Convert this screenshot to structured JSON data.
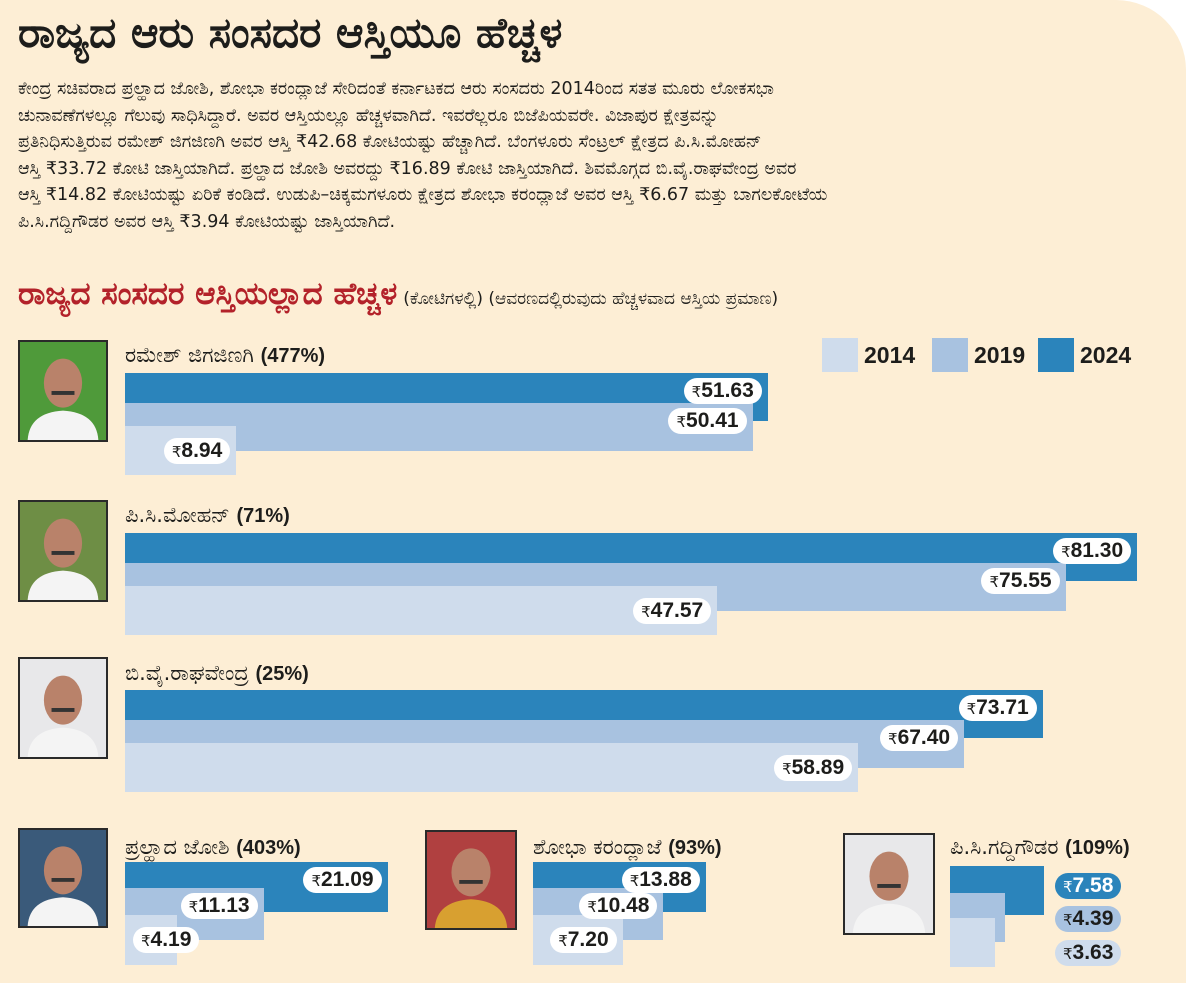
{
  "title": "ರಾಜ್ಯದ ಆರು ಸಂಸದರ ಆಸ್ತಿಯೂ ಹೆಚ್ಚಳ",
  "paragraph_lines": [
    "ಕೇಂದ್ರ ಸಚಿವರಾದ ಪ್ರಲ್ಹಾದ ಜೋಶಿ, ಶೋಭಾ ಕರಂದ್ಲಾಜೆ ಸೇರಿದಂತೆ ಕರ್ನಾಟಕದ ಆರು ಸಂಸದರು 2014ರಿಂದ ಸತತ ಮೂರು ಲೋಕಸಭಾ",
    "ಚುನಾವಣೆಗಳಲ್ಲೂ ಗೆಲುವು ಸಾಧಿಸಿದ್ದಾರೆ. ಅವರ ಆಸ್ತಿಯಲ್ಲೂ ಹೆಚ್ಚಳವಾಗಿದೆ. ಇವರೆಲ್ಲರೂ ಬಿಜೆಪಿಯವರೇ. ವಿಜಾಪುರ ಕ್ಷೇತ್ರವನ್ನು",
    "ಪ್ರತಿನಿಧಿಸುತ್ತಿರುವ ರಮೇಶ್ ಜಿಗಜಿಣಗಿ ಅವರ ಆಸ್ತಿ ₹42.68 ಕೋಟಿಯಷ್ಟು ಹೆಚ್ಚಾಗಿದೆ. ಬೆಂಗಳೂರು ಸೆಂಟ್ರಲ್ ಕ್ಷೇತ್ರದ ಪಿ.ಸಿ.ಮೋಹನ್",
    "ಆಸ್ತಿ ₹33.72 ಕೋಟಿ ಜಾಸ್ತಿಯಾಗಿದೆ.  ಪ್ರಲ್ಹಾದ ಜೋಶಿ ಅವರದ್ದು ₹16.89 ಕೋಟಿ ಜಾಸ್ತಿಯಾಗಿದೆ. ಶಿವಮೊಗ್ಗದ ಬಿ.ವೈ.ರಾಘವೇಂದ್ರ ಅವರ",
    "ಆಸ್ತಿ ₹14.82 ಕೋಟಿಯಷ್ಟು ಏರಿಕೆ ಕಂಡಿದೆ. ಉಡುಪಿ–ಚಿಕ್ಕಮಗಳೂರು ಕ್ಷೇತ್ರದ ಶೋಭಾ ಕರಂದ್ಲಾಜೆ ಅವರ ಆಸ್ತಿ ₹6.67 ಮತ್ತು ಬಾಗಲಕೋಟೆಯ",
    "ಪಿ.ಸಿ.ಗದ್ದಿಗೌಡರ ಅವರ ಆಸ್ತಿ ₹3.94 ಕೋಟಿಯಷ್ಟು ಜಾಸ್ತಿಯಾಗಿದೆ."
  ],
  "chart_data": {
    "type": "bar",
    "title": "ರಾಜ್ಯದ ಸಂಸದರ ಆಸ್ತಿಯಲ್ಲಾದ ಹೆಚ್ಚಳ",
    "note": "(ಕೋಟಿಗಳಲ್ಲಿ) (ಆವರಣದಲ್ಲಿರುವುದು ಹೆಚ್ಚಳವಾದ ಆಸ್ತಿಯ ಪ್ರಮಾಣ)",
    "currency_symbol": "₹",
    "unit": "crore",
    "legend": [
      {
        "label": "2014",
        "color": "#cfdcec"
      },
      {
        "label": "2019",
        "color": "#a8c2e0"
      },
      {
        "label": "2024",
        "color": "#2b84bb"
      }
    ],
    "legend_position": "top-right",
    "groups": [
      {
        "name": "ರಮೇಶ್ ಜಿಗಜಿಣಗಿ",
        "increase": "477%",
        "values": {
          "2014": 8.94,
          "2019": 50.41,
          "2024": 51.63
        }
      },
      {
        "name": "ಪಿ.ಸಿ.ಮೋಹನ್",
        "increase": "71%",
        "values": {
          "2014": 47.57,
          "2019": 75.55,
          "2024": 81.3
        }
      },
      {
        "name": "ಬಿ.ವೈ.ರಾಘವೇಂದ್ರ",
        "increase": "25%",
        "values": {
          "2014": 58.89,
          "2019": 67.4,
          "2024": 73.71
        }
      },
      {
        "name": "ಪ್ರಲ್ಹಾದ ಜೋಶಿ",
        "increase": "403%",
        "values": {
          "2014": 4.19,
          "2019": 11.13,
          "2024": 21.09
        }
      },
      {
        "name": "ಶೋಭಾ ಕರಂದ್ಲಾಜೆ",
        "increase": "93%",
        "values": {
          "2014": 7.2,
          "2019": 10.48,
          "2024": 13.88
        }
      },
      {
        "name": "ಪಿ.ಸಿ.ಗದ್ದಿಗೌಡರ",
        "increase": "109%",
        "values": {
          "2014": 3.63,
          "2019": 4.39,
          "2024": 7.58
        }
      }
    ]
  }
}
